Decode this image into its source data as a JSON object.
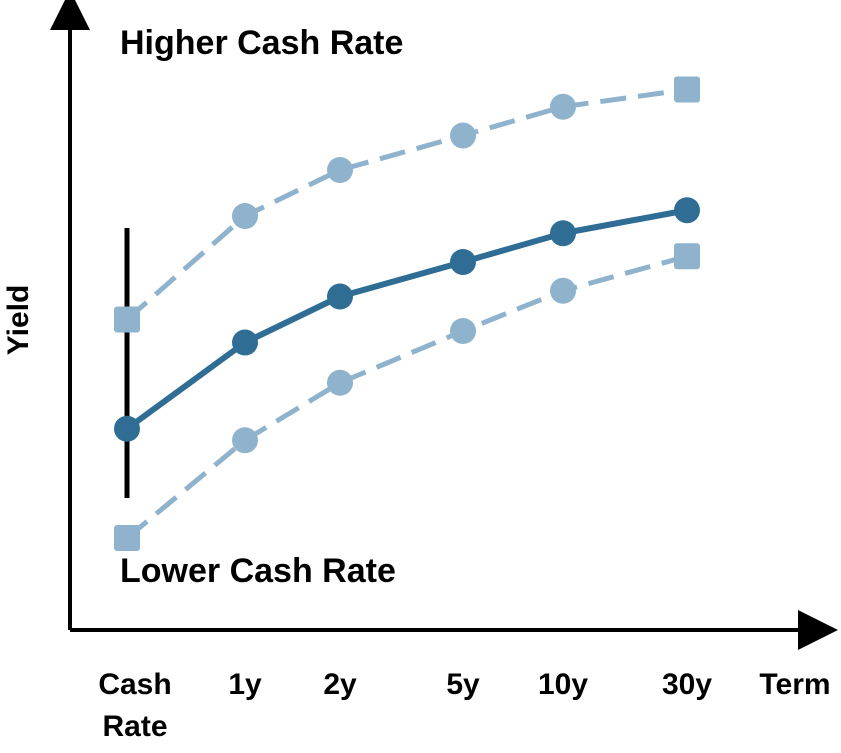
{
  "chart_data": {
    "type": "line",
    "xlabel": "Term",
    "ylabel": "Yield",
    "categories": [
      "Cash Rate",
      "1y",
      "2y",
      "5y",
      "10y",
      "30y"
    ],
    "x": [
      0,
      1,
      2,
      5,
      10,
      30
    ],
    "series": [
      {
        "values": [
          5.4,
          7.2,
          8.0,
          8.6,
          9.1,
          9.4
        ],
        "style": "dashed",
        "marker": "square",
        "color": "#8fb3cc"
      },
      {
        "values": [
          3.5,
          5.0,
          5.8,
          6.4,
          6.9,
          7.3
        ],
        "style": "solid",
        "marker": "circle",
        "color": "#2f6d94"
      },
      {
        "values": [
          1.6,
          3.3,
          4.3,
          5.2,
          5.9,
          6.5
        ],
        "style": "dashed",
        "marker": "square",
        "color": "#8fb3cc"
      }
    ],
    "annotations": {
      "top": "Higher Cash Rate",
      "bottom": "Lower Cash Rate"
    },
    "grid": false,
    "legend": "none"
  }
}
